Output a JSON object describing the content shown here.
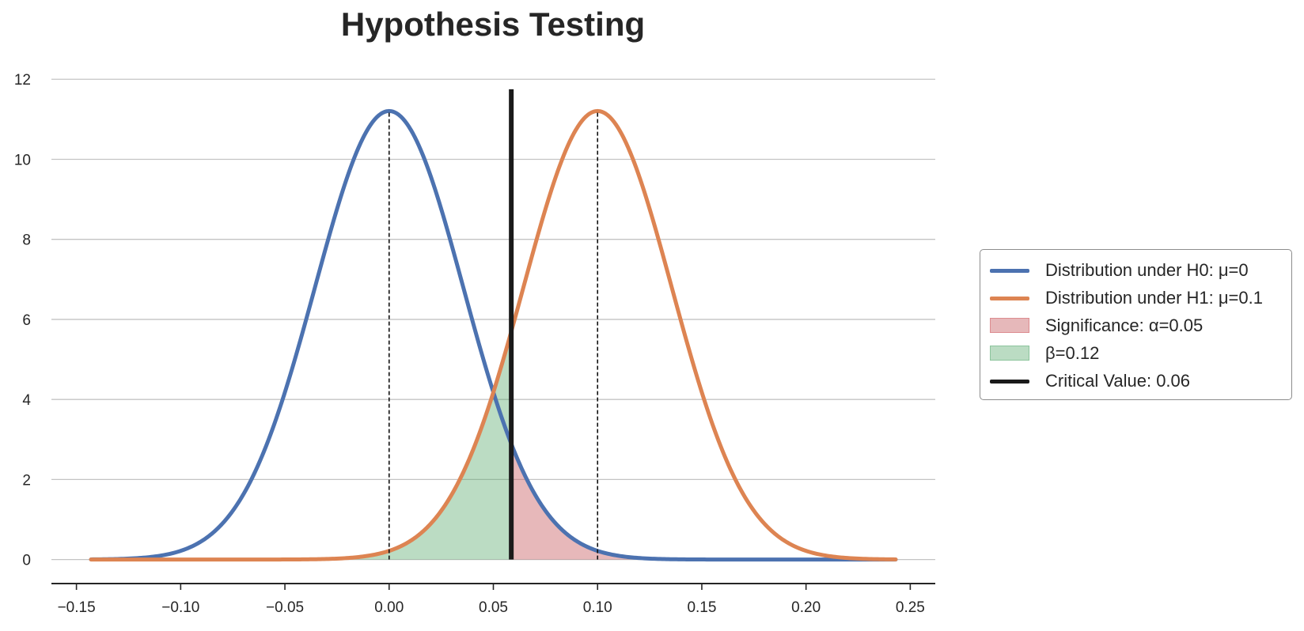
{
  "chart_data": {
    "type": "line",
    "title": "Hypothesis Testing",
    "xlabel": "",
    "ylabel": "",
    "xlim": [
      -0.162,
      0.262
    ],
    "ylim": [
      -0.6,
      12.4
    ],
    "x_ticks": [
      -0.15,
      -0.1,
      -0.05,
      0.0,
      0.05,
      0.1,
      0.15,
      0.2,
      0.25
    ],
    "x_tick_labels": [
      "−0.15",
      "−0.10",
      "−0.05",
      "0.00",
      "0.05",
      "0.10",
      "0.15",
      "0.20",
      "0.25"
    ],
    "y_ticks": [
      0,
      2,
      4,
      6,
      8,
      10,
      12
    ],
    "y_tick_labels": [
      "0",
      "2",
      "4",
      "6",
      "8",
      "10",
      "12"
    ],
    "grid": "horizontal",
    "legend_position": "outside-right",
    "x_range": [
      -0.143,
      0.243
    ],
    "series": [
      {
        "name": "Distribution under H0: μ=0",
        "kind": "normal_pdf",
        "mean": 0.0,
        "sd": 0.0356,
        "color": "#4c72b0"
      },
      {
        "name": "Distribution under H1: μ=0.1",
        "kind": "normal_pdf",
        "mean": 0.1,
        "sd": 0.0356,
        "color": "#dd8452"
      }
    ],
    "shaded_regions": [
      {
        "name": "Significance: α=0.05",
        "under": "H0",
        "from": 0.0586,
        "to": 0.243,
        "color": "#c44e52",
        "opacity": 0.4
      },
      {
        "name": "β=0.12",
        "under": "H1",
        "from": -0.143,
        "to": 0.0586,
        "color": "#55a868",
        "opacity": 0.4
      }
    ],
    "critical_value": {
      "name": "Critical Value: 0.06",
      "x": 0.0586,
      "y_top": 11.75,
      "color": "#1a1a1a"
    },
    "mean_markers": [
      {
        "x": 0.0,
        "y_top": 11.2
      },
      {
        "x": 0.1,
        "y_top": 11.2
      }
    ]
  },
  "legend": {
    "items": [
      {
        "label": "Distribution under H0: μ=0",
        "kind": "line",
        "color": "#4c72b0"
      },
      {
        "label": "Distribution under H1: μ=0.1",
        "kind": "line",
        "color": "#dd8452"
      },
      {
        "label": "Significance: α=0.05",
        "kind": "patch",
        "color": "#e6b8ba",
        "edge": "#dc8c90"
      },
      {
        "label": "β=0.12",
        "kind": "patch",
        "color": "#bbdcc3",
        "edge": "#8cc49c"
      },
      {
        "label": "Critical Value: 0.06",
        "kind": "line",
        "color": "#1a1a1a"
      }
    ]
  }
}
